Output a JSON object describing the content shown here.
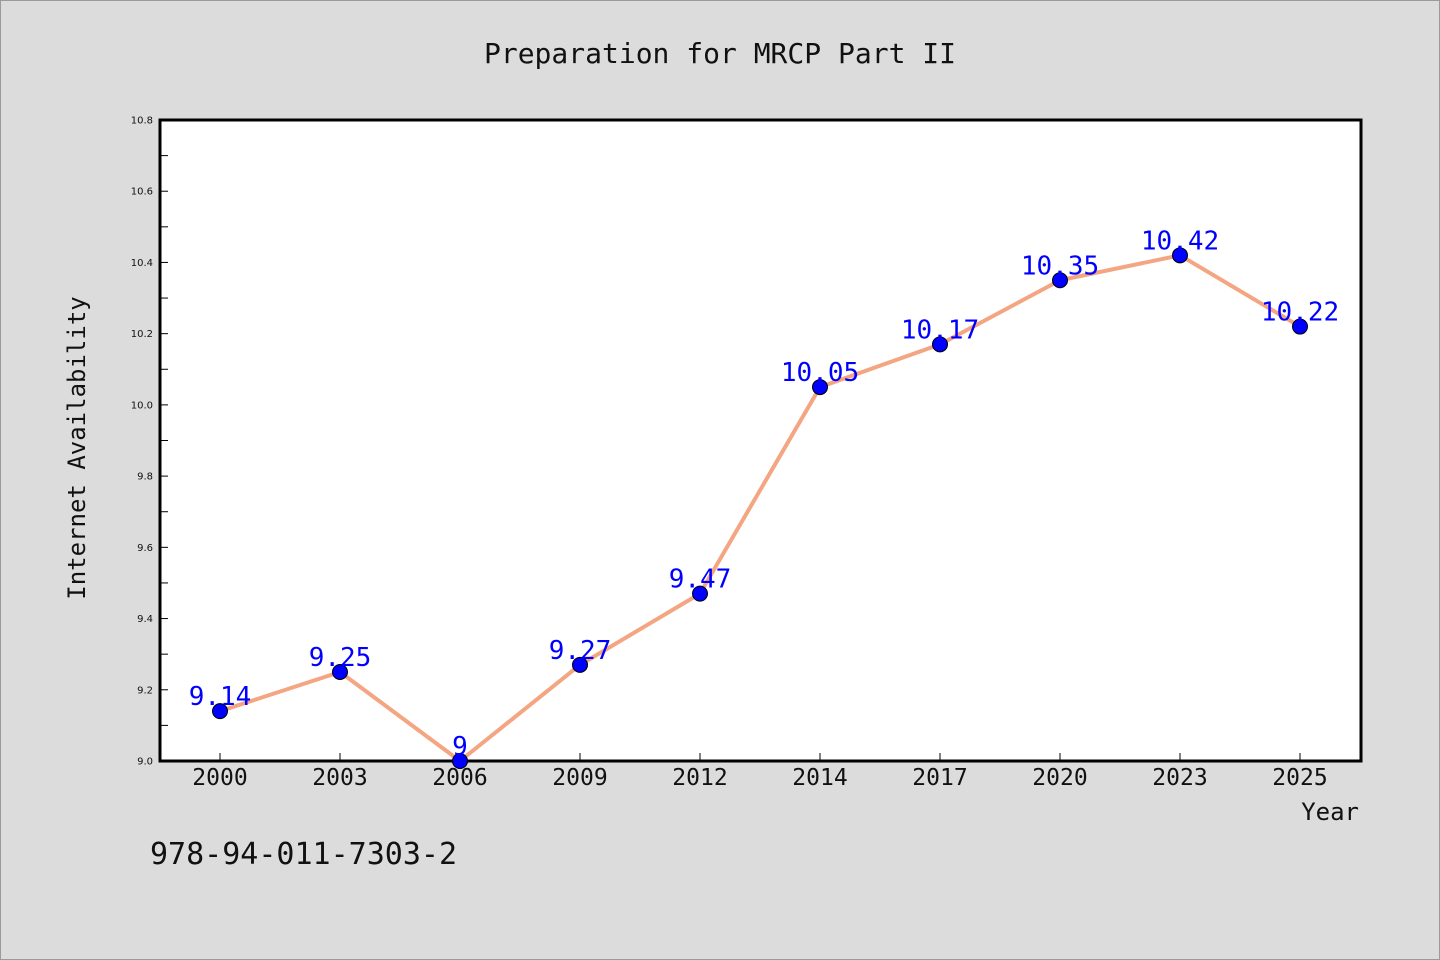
{
  "chart_data": {
    "type": "line",
    "title": "Preparation for MRCP Part II",
    "xlabel": "Year",
    "ylabel": "Internet Availability",
    "categories": [
      "2000",
      "2003",
      "2006",
      "2009",
      "2012",
      "2014",
      "2017",
      "2020",
      "2023",
      "2025"
    ],
    "series": [
      {
        "values": [
          9.14,
          9.25,
          9.0,
          9.27,
          9.47,
          10.05,
          10.17,
          10.35,
          10.42,
          10.22
        ],
        "data_labels": [
          "9.14",
          "9.25",
          "9",
          "9.27",
          "9.47",
          "10.05",
          "10.17",
          "10.35",
          "10.42",
          "10.22"
        ]
      }
    ],
    "ylim": [
      9.0,
      10.8
    ],
    "yticks": [
      "9.0",
      "9.2",
      "9.4",
      "9.6",
      "9.8",
      "10.0",
      "10.2",
      "10.4",
      "10.6",
      "10.8"
    ],
    "grid": false,
    "legend": "none",
    "colors": {
      "line": "#f4a582",
      "marker": "#0000ff",
      "label": "#0000ff",
      "plot_background": "#ffffff",
      "figure_background": "#dcdcdc"
    }
  },
  "footer_text": "978-94-011-7303-2"
}
